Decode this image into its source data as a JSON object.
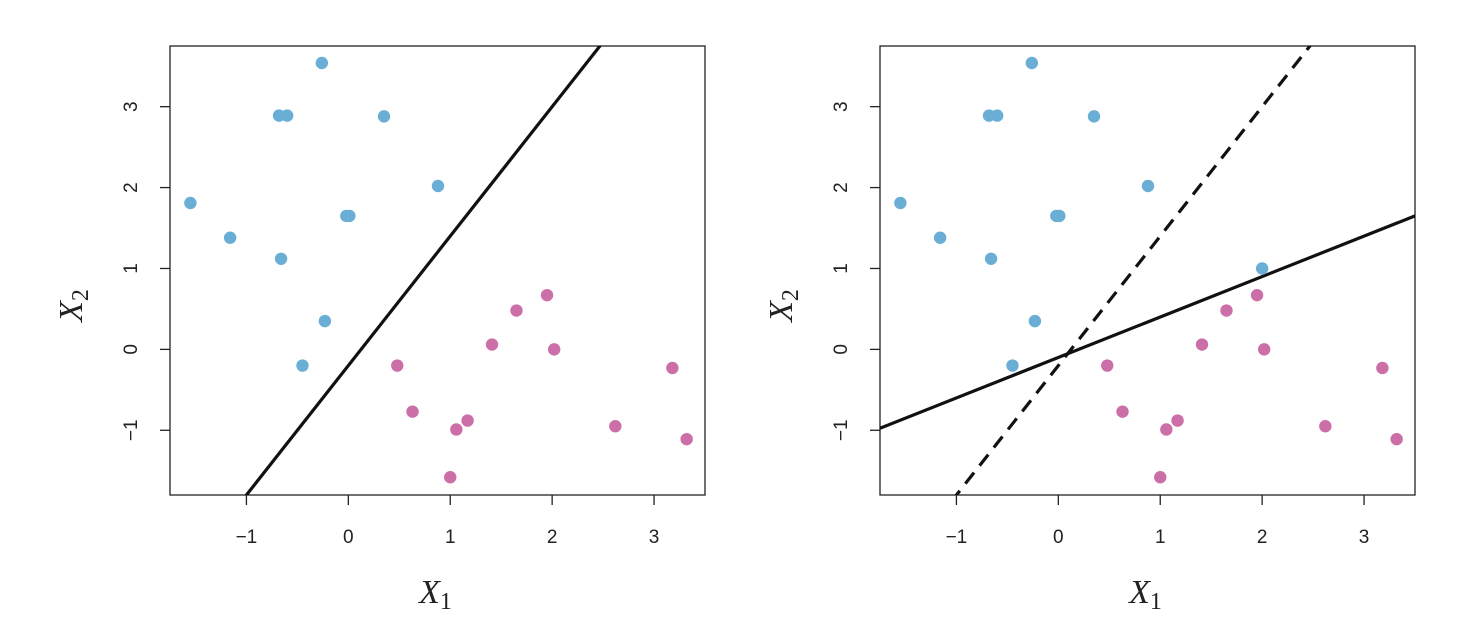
{
  "chart_data": [
    {
      "type": "scatter",
      "xlabel": "X",
      "xlabel_sub": "1",
      "ylabel": "X",
      "ylabel_sub": "2",
      "xlim": [
        -1.75,
        3.5
      ],
      "ylim": [
        -1.8,
        3.75
      ],
      "xticks": [
        -1,
        0,
        1,
        2,
        3
      ],
      "yticks": [
        -1,
        0,
        1,
        2,
        3
      ],
      "grid": false,
      "colors": {
        "blue": "#6aaed6",
        "pink": "#cc6fa8"
      },
      "series": [
        {
          "color": "blue",
          "points": [
            [
              -1.55,
              1.81
            ],
            [
              -1.16,
              1.38
            ],
            [
              -0.68,
              2.89
            ],
            [
              -0.6,
              2.89
            ],
            [
              -0.66,
              1.12
            ],
            [
              -0.26,
              3.54
            ],
            [
              -0.02,
              1.65
            ],
            [
              0.01,
              1.65
            ],
            [
              0.35,
              2.88
            ],
            [
              -0.23,
              0.35
            ],
            [
              -0.45,
              -0.2
            ],
            [
              0.88,
              2.02
            ]
          ]
        },
        {
          "color": "pink",
          "points": [
            [
              0.48,
              -0.2
            ],
            [
              0.63,
              -0.77
            ],
            [
              1.06,
              -0.99
            ],
            [
              1.17,
              -0.88
            ],
            [
              1.0,
              -1.58
            ],
            [
              1.41,
              0.06
            ],
            [
              1.65,
              0.48
            ],
            [
              1.95,
              0.67
            ],
            [
              2.02,
              0.0
            ],
            [
              2.62,
              -0.95
            ],
            [
              3.18,
              -0.23
            ],
            [
              3.32,
              -1.11
            ]
          ]
        }
      ],
      "lines": [
        {
          "intercept": -0.2,
          "slope": 1.6,
          "style": "solid"
        }
      ]
    },
    {
      "type": "scatter",
      "xlabel": "X",
      "xlabel_sub": "1",
      "ylabel": "X",
      "ylabel_sub": "2",
      "xlim": [
        -1.75,
        3.5
      ],
      "ylim": [
        -1.8,
        3.75
      ],
      "xticks": [
        -1,
        0,
        1,
        2,
        3
      ],
      "yticks": [
        -1,
        0,
        1,
        2,
        3
      ],
      "grid": false,
      "colors": {
        "blue": "#6aaed6",
        "pink": "#cc6fa8"
      },
      "series": [
        {
          "color": "blue",
          "points": [
            [
              -1.55,
              1.81
            ],
            [
              -1.16,
              1.38
            ],
            [
              -0.68,
              2.89
            ],
            [
              -0.6,
              2.89
            ],
            [
              -0.66,
              1.12
            ],
            [
              -0.26,
              3.54
            ],
            [
              -0.02,
              1.65
            ],
            [
              0.01,
              1.65
            ],
            [
              0.35,
              2.88
            ],
            [
              -0.23,
              0.35
            ],
            [
              -0.45,
              -0.2
            ],
            [
              0.88,
              2.02
            ],
            [
              2.0,
              1.0
            ]
          ]
        },
        {
          "color": "pink",
          "points": [
            [
              0.48,
              -0.2
            ],
            [
              0.63,
              -0.77
            ],
            [
              1.06,
              -0.99
            ],
            [
              1.17,
              -0.88
            ],
            [
              1.0,
              -1.58
            ],
            [
              1.41,
              0.06
            ],
            [
              1.65,
              0.48
            ],
            [
              1.95,
              0.67
            ],
            [
              2.02,
              0.0
            ],
            [
              2.62,
              -0.95
            ],
            [
              3.18,
              -0.23
            ],
            [
              3.32,
              -1.11
            ]
          ]
        }
      ],
      "lines": [
        {
          "intercept": -0.2,
          "slope": 1.6,
          "style": "dashed"
        },
        {
          "intercept": -0.1,
          "slope": 0.5,
          "style": "solid"
        }
      ]
    }
  ]
}
